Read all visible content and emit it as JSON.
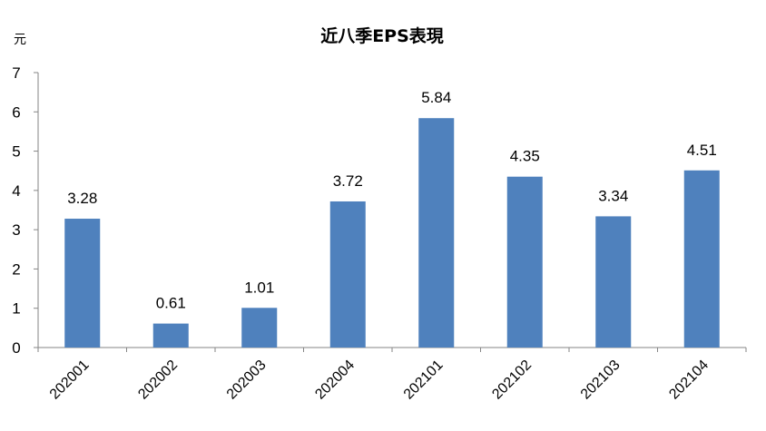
{
  "chart_data": {
    "type": "bar",
    "title": "近八季EPS表現",
    "ylabel": "元",
    "xlabel": "",
    "categories": [
      "202001",
      "202002",
      "202003",
      "202004",
      "202101",
      "202102",
      "202103",
      "202104"
    ],
    "values": [
      3.28,
      0.61,
      1.01,
      3.72,
      5.84,
      4.35,
      3.34,
      4.51
    ],
    "data_labels": [
      "3.28",
      "0.61",
      "1.01",
      "3.72",
      "5.84",
      "4.35",
      "3.34",
      "4.51"
    ],
    "ylim": [
      0,
      7
    ],
    "yticks": [
      "0",
      "1",
      "2",
      "3",
      "4",
      "5",
      "6",
      "7"
    ],
    "bar_color": "#4F81BD",
    "grid": false,
    "legend": "none"
  }
}
